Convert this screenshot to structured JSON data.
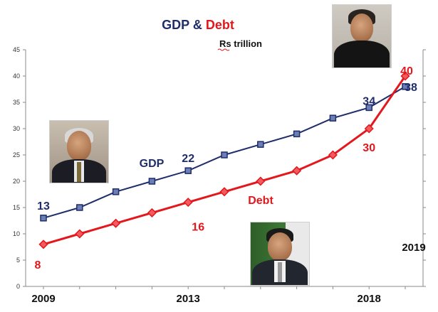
{
  "chart_data": {
    "type": "line",
    "title_parts": [
      {
        "text": "GDP",
        "color": "#1f2d6a"
      },
      {
        "text": " & ",
        "color": "#1f2d6a"
      },
      {
        "text": "Debt",
        "color": "#e3171c"
      }
    ],
    "subtitle": "Rs trillion",
    "x": [
      2009,
      2010,
      2011,
      2012,
      2013,
      2014,
      2015,
      2016,
      2017,
      2018,
      2019
    ],
    "x_tick_labels": [
      {
        "x": 2009,
        "label": "2009"
      },
      {
        "x": 2013,
        "label": "2013"
      },
      {
        "x": 2018,
        "label": "2018"
      }
    ],
    "extra_label": {
      "x": 2019,
      "text": "2019"
    },
    "ylim": [
      0,
      45
    ],
    "y_ticks": [
      0,
      5,
      10,
      15,
      20,
      25,
      30,
      35,
      40,
      45
    ],
    "grid": false,
    "series": [
      {
        "name": "GDP",
        "color": "#1f2d6a",
        "marker": "square",
        "values": [
          13,
          15,
          18,
          20,
          22,
          25,
          27,
          29,
          32,
          34,
          38
        ]
      },
      {
        "name": "Debt",
        "color": "#e3171c",
        "marker": "diamond",
        "values": [
          8,
          10,
          12,
          14,
          16,
          18,
          20,
          22,
          25,
          30,
          40
        ]
      }
    ],
    "data_labels": [
      {
        "series": "GDP",
        "x": 2009,
        "value": 13,
        "text": "13"
      },
      {
        "series": "GDP",
        "x": 2013,
        "value": 22,
        "text": "22"
      },
      {
        "series": "GDP",
        "x": 2018,
        "value": 34,
        "text": "34"
      },
      {
        "series": "GDP",
        "x": 2019,
        "value": 38,
        "text": "38"
      },
      {
        "series": "Debt",
        "x": 2009,
        "value": 8,
        "text": "8"
      },
      {
        "series": "Debt",
        "x": 2013,
        "value": 16,
        "text": "16"
      },
      {
        "series": "Debt",
        "x": 2018,
        "value": 30,
        "text": "30"
      },
      {
        "series": "Debt",
        "x": 2019,
        "value": 40,
        "text": "40"
      }
    ],
    "series_annotations": [
      {
        "series": "GDP",
        "text": "GDP"
      },
      {
        "series": "Debt",
        "text": "Debt"
      }
    ]
  },
  "photos": [
    {
      "name": "photo-2009"
    },
    {
      "name": "photo-2013"
    },
    {
      "name": "photo-2018"
    }
  ]
}
